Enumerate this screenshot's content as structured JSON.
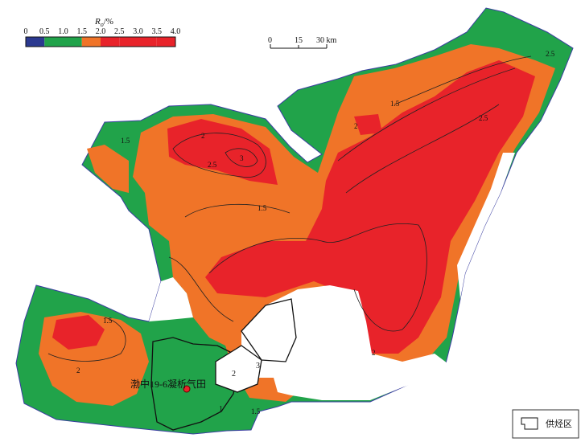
{
  "legend": {
    "title": {
      "symbol": "R",
      "subscript": "o",
      "unit": "/%"
    },
    "ticks": [
      "0",
      "0.5",
      "1.0",
      "1.5",
      "2.0",
      "2.5",
      "3.0",
      "3.5",
      "4.0"
    ],
    "colors": [
      "#2b3990",
      "#21a34a",
      "#21a34a",
      "#f07428",
      "#e8232a",
      "#e8232a",
      "#e8232a",
      "#e8232a"
    ]
  },
  "scale_bar": {
    "labels": [
      "0",
      "15",
      "30 km"
    ]
  },
  "field_label": "渤中19-6凝析气田",
  "zones": [
    "1",
    "2",
    "3"
  ],
  "contour_labels": [
    "1.5",
    "2",
    "2.5",
    "3",
    "1.5",
    "2",
    "2.5",
    "1.5",
    "2",
    "1.5",
    "2",
    "1.5",
    "2.5"
  ],
  "key": {
    "label": "供烃区"
  }
}
